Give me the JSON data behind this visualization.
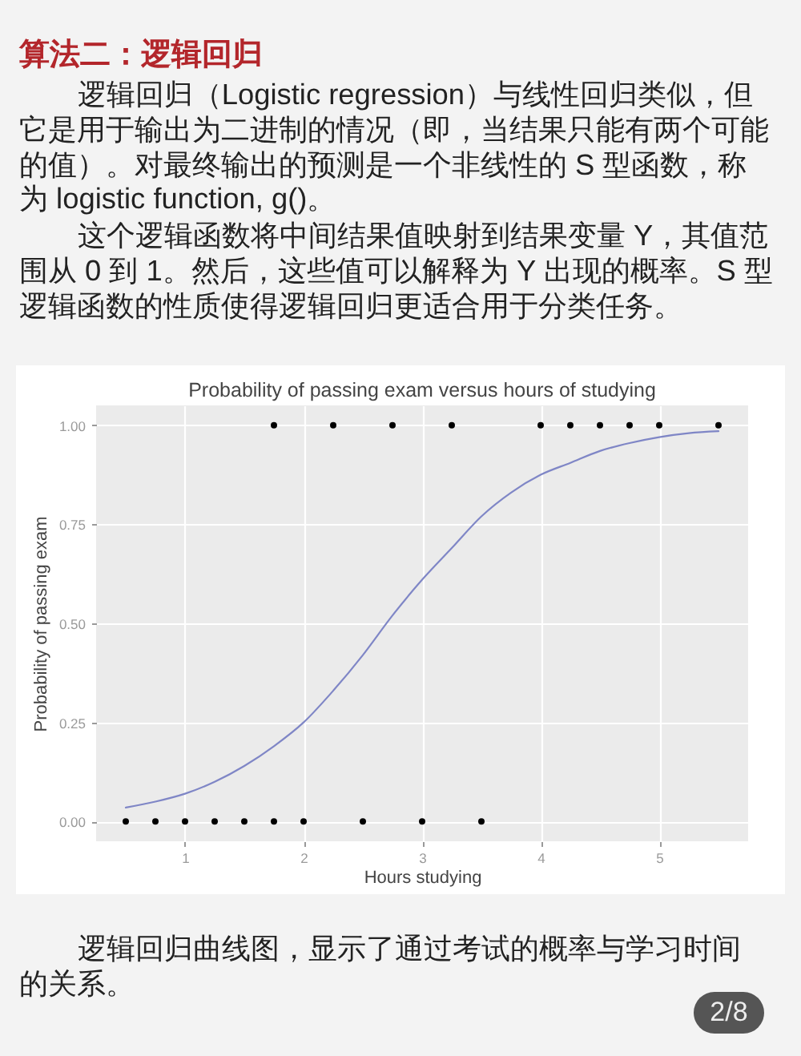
{
  "chart_data": {
    "type": "scatter",
    "title": "Probability of passing exam versus hours of studying",
    "xlabel": "Hours studying",
    "ylabel": "Probability of passing exam",
    "annotations": [
      "算法二：逻辑回归",
      "逻辑回归（Logistic regression）与线性回归类似，但它是用于输出为二进制的情况（即，当结果只能有两个可能的值）。对最终输出的预测是一个非线性的 S 型函数，称为 logistic function, g()。",
      "这个逻辑函数将中间结果值映射到结果变量 Y，其值范围从 0 到 1。然后，这些值可以解释为 Y 出现的概率。S 型逻辑函数的性质使得逻辑回归更适合用于分类任务。",
      "逻辑回归曲线图，显示了通过考试的概率与学习时间的关系。",
      "2/8"
    ],
    "series": [
      {
        "marker": "circle",
        "color": "#000000",
        "x": [
          0.5,
          0.75,
          1,
          1.25,
          1.5,
          1.75,
          1.75,
          2,
          2.25,
          2.5,
          2.75,
          3,
          3.25,
          3.5,
          4,
          4.25,
          4.5,
          4.75,
          5,
          5.5
        ],
        "values": [
          0,
          0,
          0,
          0,
          0,
          0,
          1,
          0,
          1,
          0,
          1,
          0,
          1,
          0,
          1,
          1,
          1,
          1,
          1,
          1
        ]
      },
      {
        "type": "line",
        "color": "#7f86c6",
        "x": [
          0.5,
          0.75,
          1,
          1.25,
          1.5,
          1.75,
          2,
          2.25,
          2.5,
          2.75,
          3,
          3.25,
          3.5,
          3.75,
          4,
          4.25,
          4.5,
          4.75,
          5,
          5.25,
          5.5
        ],
        "values": [
          0.035,
          0.05,
          0.07,
          0.1,
          0.14,
          0.19,
          0.25,
          0.33,
          0.42,
          0.52,
          0.61,
          0.69,
          0.77,
          0.83,
          0.875,
          0.905,
          0.935,
          0.955,
          0.97,
          0.98,
          0.985
        ]
      }
    ],
    "xlim": [
      0.25,
      5.75
    ],
    "ylim": [
      -0.05,
      1.05
    ],
    "xticks": [
      1,
      2,
      3,
      4,
      5
    ],
    "yticks": [
      {
        "value": 0,
        "label": "0.00"
      },
      {
        "value": 0.25,
        "label": "0.25"
      },
      {
        "value": 0.5,
        "label": "0.50"
      },
      {
        "value": 0.75,
        "label": "0.75"
      },
      {
        "value": 1,
        "label": "1.00"
      }
    ],
    "grid": true
  }
}
